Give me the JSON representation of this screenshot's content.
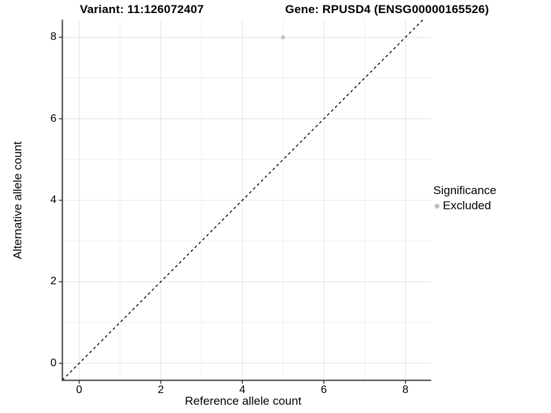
{
  "titles": {
    "variant": "Variant: 11:126072407",
    "gene": "Gene: RPUSD4 (ENSG00000165526)"
  },
  "axes": {
    "x_label": "Reference allele count",
    "y_label": "Alternative allele count"
  },
  "legend": {
    "title": "Significance",
    "items": [
      {
        "label": "Excluded",
        "color": "#BEBEBE"
      }
    ]
  },
  "colors": {
    "background": "#FFFFFF",
    "grid_major": "#E3E3E3",
    "grid_minor": "#EFEFEF",
    "axis_line": "#333333",
    "tick_text": "#111111",
    "point": "#BEBEBE",
    "identity_line": "#000000"
  },
  "chart_data": {
    "type": "scatter",
    "title_left": "Variant: 11:126072407",
    "title_right": "Gene: RPUSD4 (ENSG00000165526)",
    "xlabel": "Reference allele count",
    "ylabel": "Alternative allele count",
    "xlim": [
      -0.42,
      8.65
    ],
    "ylim": [
      -0.42,
      8.43
    ],
    "x_ticks": [
      0,
      2,
      4,
      6,
      8
    ],
    "y_ticks": [
      0,
      2,
      4,
      6,
      8
    ],
    "x_minor": [
      1,
      3,
      5,
      7
    ],
    "y_minor": [
      1,
      3,
      5,
      7
    ],
    "grid": true,
    "legend_position": "right",
    "series": [
      {
        "name": "Excluded",
        "color": "#BEBEBE",
        "points": [
          {
            "x": 5,
            "y": 8
          }
        ]
      }
    ],
    "reference_line": {
      "type": "identity",
      "equation": "y = x",
      "style": "dashed",
      "color": "#000000"
    }
  }
}
